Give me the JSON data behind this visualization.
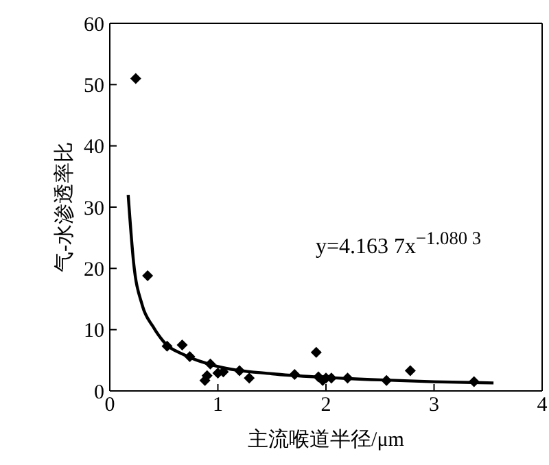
{
  "chart_data": {
    "type": "scatter",
    "xlabel": "主流喉道半径/μm",
    "ylabel": "气-水渗透率比",
    "xlim": [
      0,
      4
    ],
    "xticks": [
      0,
      1,
      2,
      3,
      4
    ],
    "ylim": [
      0,
      60
    ],
    "yticks": [
      0,
      10,
      20,
      30,
      40,
      50,
      60
    ],
    "grid": false,
    "legend": false,
    "annotations": [
      "y=4.163 7x$^{−1.080 3}$"
    ],
    "series": [
      {
        "marker": "diamond",
        "color": "#000000",
        "x": [
          0.24,
          0.35,
          0.53,
          0.67,
          0.74,
          0.88,
          0.9,
          0.93,
          1.0,
          1.05,
          1.2,
          1.29,
          1.71,
          1.91,
          1.93,
          1.97,
          2.0,
          2.05,
          2.2,
          2.56,
          2.78,
          3.37
        ],
        "values": [
          51,
          18.8,
          7.3,
          7.5,
          5.6,
          1.7,
          2.5,
          4.4,
          2.9,
          3.1,
          3.3,
          2.1,
          2.7,
          6.3,
          2.3,
          1.7,
          2.1,
          2.1,
          2.1,
          1.7,
          3.3,
          1.5
        ]
      },
      {
        "type": "line",
        "marker": "none",
        "color": "#000000",
        "x": [
          0.17,
          0.22,
          0.3,
          0.4,
          0.5,
          0.7,
          1.0,
          1.5,
          2.0,
          2.5,
          3.0,
          3.55
        ],
        "values": [
          32,
          21,
          14,
          10.5,
          8,
          5.8,
          4,
          2.8,
          2.2,
          1.8,
          1.5,
          1.3
        ]
      }
    ]
  }
}
